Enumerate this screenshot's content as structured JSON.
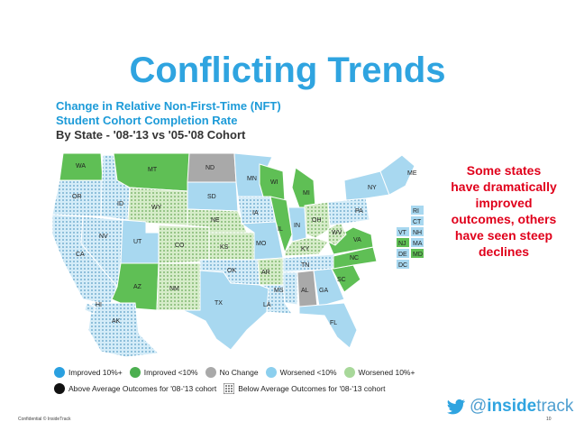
{
  "title": "Conflicting Trends",
  "subtitle": {
    "line1": "Change in Relative Non-First-Time (NFT)",
    "line2": "Student Cohort Completion Rate",
    "line3": "By State - '08-'13 vs '05-'08 Cohort"
  },
  "side_text": "Some states have dramatically improved outcomes, others have seen steep declines",
  "colors": {
    "improved_10": "#5bb3e6",
    "improved_lt10": "#5fbf55",
    "no_change": "#a9a9a9",
    "worsened_lt10": "#a8d8f0",
    "worsened_10": "#b5dda0"
  },
  "legend": {
    "row1": [
      {
        "label": "Improved 10%+",
        "color": "#2aa0e0"
      },
      {
        "label": "Improved <10%",
        "color": "#4caf50"
      },
      {
        "label": "No Change",
        "color": "#a9a9a9"
      },
      {
        "label": "Worsened <10%",
        "color": "#8ccfee"
      },
      {
        "label": "Worsened 10%+",
        "color": "#a8d89a"
      }
    ],
    "row2": [
      {
        "label": "Above Average Outcomes for '08-'13 cohort",
        "color": "#111111"
      },
      {
        "label": "Below Average Outcomes for '08-'13 cohort",
        "color": "pattern"
      }
    ]
  },
  "states": {
    "WA": "WA",
    "OR": "OR",
    "CA": "CA",
    "ID": "ID",
    "NV": "NV",
    "MT": "MT",
    "WY": "WY",
    "UT": "UT",
    "AZ": "AZ",
    "CO": "CO",
    "NM": "NM",
    "ND": "ND",
    "SD": "SD",
    "NE": "NE",
    "KS": "KS",
    "OK": "OK",
    "TX": "TX",
    "MN": "MN",
    "IA": "IA",
    "MO": "MO",
    "AR": "AR",
    "LA": "LA",
    "WI": "WI",
    "IL": "IL",
    "MI": "MI",
    "IN": "IN",
    "OH": "OH",
    "KY": "KY",
    "TN": "TN",
    "MS": "MS",
    "AL": "AL",
    "GA": "GA",
    "FL": "FL",
    "SC": "SC",
    "NC": "NC",
    "VA": "VA",
    "WV": "WV",
    "PA": "PA",
    "NY": "NY",
    "ME": "ME",
    "AK": "AK",
    "HI": "HI"
  },
  "ne_labels": [
    "RI",
    "CT",
    "VT",
    "NH",
    "NJ",
    "MA",
    "DE",
    "MD",
    "DC"
  ],
  "brand": {
    "handle_at": "@",
    "handle_main": "inside",
    "handle_end": "track"
  },
  "footer": {
    "left": "Confidential  © InsideTrack",
    "right": "10"
  }
}
